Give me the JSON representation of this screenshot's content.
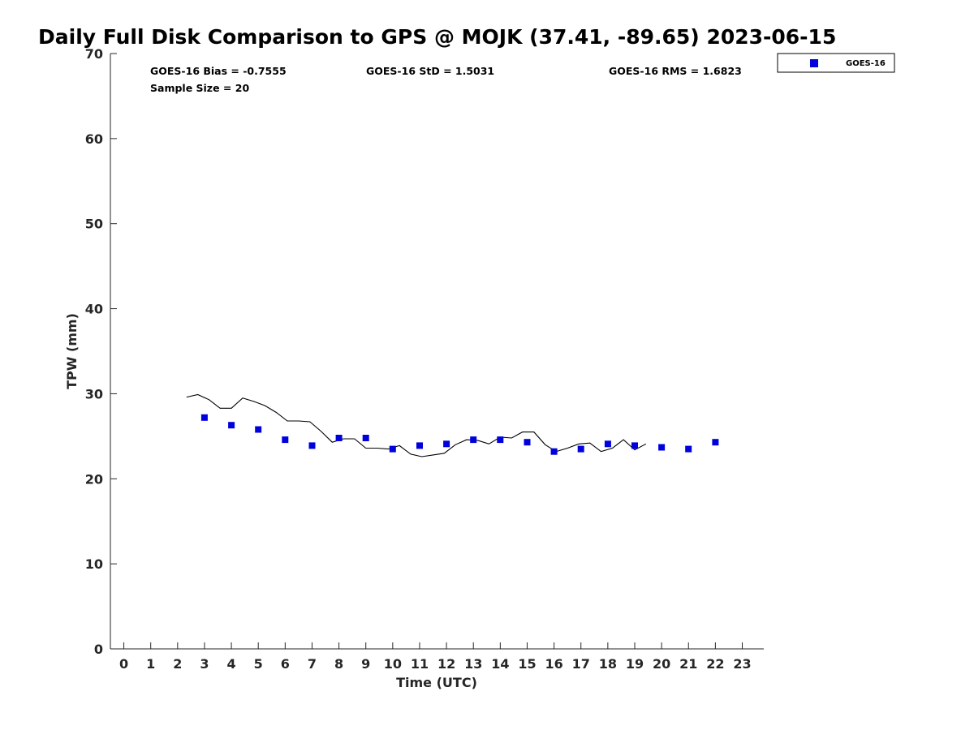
{
  "chart_data": {
    "type": "scatter",
    "title": "Daily Full Disk Comparison to GPS @ MOJK (37.41, -89.65) 2023-06-15",
    "xlabel": "Time (UTC)",
    "ylabel": "TPW (mm)",
    "xlim": [
      -0.5,
      23.8
    ],
    "ylim": [
      0,
      70
    ],
    "x_ticks": [
      "0",
      "1",
      "2",
      "3",
      "4",
      "5",
      "6",
      "7",
      "8",
      "9",
      "10",
      "11",
      "12",
      "13",
      "14",
      "15",
      "16",
      "17",
      "18",
      "19",
      "20",
      "21",
      "22",
      "23"
    ],
    "y_ticks": [
      "0",
      "10",
      "20",
      "30",
      "40",
      "50",
      "60",
      "70"
    ],
    "grid": false,
    "legend_position": "top-right (outside plot)",
    "stats": {
      "bias": "GOES-16 Bias = -0.7555",
      "std": "GOES-16 StD = 1.5031",
      "rms": "GOES-16 RMS = 1.6823",
      "sample": "Sample Size = 20"
    },
    "series": [
      {
        "name": "GOES-16",
        "type": "scatter",
        "marker": "square",
        "color": "#0000dd",
        "points": [
          [
            3,
            27.2
          ],
          [
            4,
            26.3
          ],
          [
            5,
            25.8
          ],
          [
            6,
            24.6
          ],
          [
            7,
            23.9
          ],
          [
            8,
            24.8
          ],
          [
            9,
            24.8
          ],
          [
            10,
            23.5
          ],
          [
            11,
            23.9
          ],
          [
            12,
            24.1
          ],
          [
            13,
            24.6
          ],
          [
            14,
            24.6
          ],
          [
            15,
            24.3
          ],
          [
            16,
            23.2
          ],
          [
            17,
            23.5
          ],
          [
            18,
            24.1
          ],
          [
            19,
            23.9
          ],
          [
            20,
            23.7
          ],
          [
            21,
            23.5
          ],
          [
            22,
            24.3
          ]
        ]
      },
      {
        "type": "line",
        "color": "#000000",
        "points": [
          [
            2.33,
            29.6
          ],
          [
            2.75,
            29.9
          ],
          [
            3.17,
            29.3
          ],
          [
            3.58,
            28.3
          ],
          [
            4.0,
            28.3
          ],
          [
            4.42,
            29.5
          ],
          [
            4.83,
            29.1
          ],
          [
            5.25,
            28.6
          ],
          [
            5.67,
            27.8
          ],
          [
            6.08,
            26.8
          ],
          [
            6.5,
            26.8
          ],
          [
            6.92,
            26.7
          ],
          [
            7.33,
            25.6
          ],
          [
            7.75,
            24.3
          ],
          [
            8.17,
            24.7
          ],
          [
            8.58,
            24.7
          ],
          [
            9.0,
            23.6
          ],
          [
            9.42,
            23.6
          ],
          [
            9.83,
            23.5
          ],
          [
            10.25,
            23.9
          ],
          [
            10.67,
            22.9
          ],
          [
            11.08,
            22.6
          ],
          [
            11.5,
            22.8
          ],
          [
            11.92,
            23.0
          ],
          [
            12.33,
            24.0
          ],
          [
            12.75,
            24.6
          ],
          [
            13.17,
            24.5
          ],
          [
            13.58,
            24.1
          ],
          [
            14.0,
            24.9
          ],
          [
            14.42,
            24.8
          ],
          [
            14.83,
            25.5
          ],
          [
            15.25,
            25.5
          ],
          [
            15.67,
            24.0
          ],
          [
            16.08,
            23.2
          ],
          [
            16.5,
            23.6
          ],
          [
            16.92,
            24.1
          ],
          [
            17.33,
            24.2
          ],
          [
            17.75,
            23.2
          ],
          [
            18.17,
            23.6
          ],
          [
            18.58,
            24.6
          ],
          [
            19.0,
            23.4
          ],
          [
            19.42,
            24.1
          ]
        ]
      }
    ]
  },
  "legend": {
    "items": [
      {
        "label": "GOES-16",
        "color": "#0000dd"
      }
    ]
  }
}
